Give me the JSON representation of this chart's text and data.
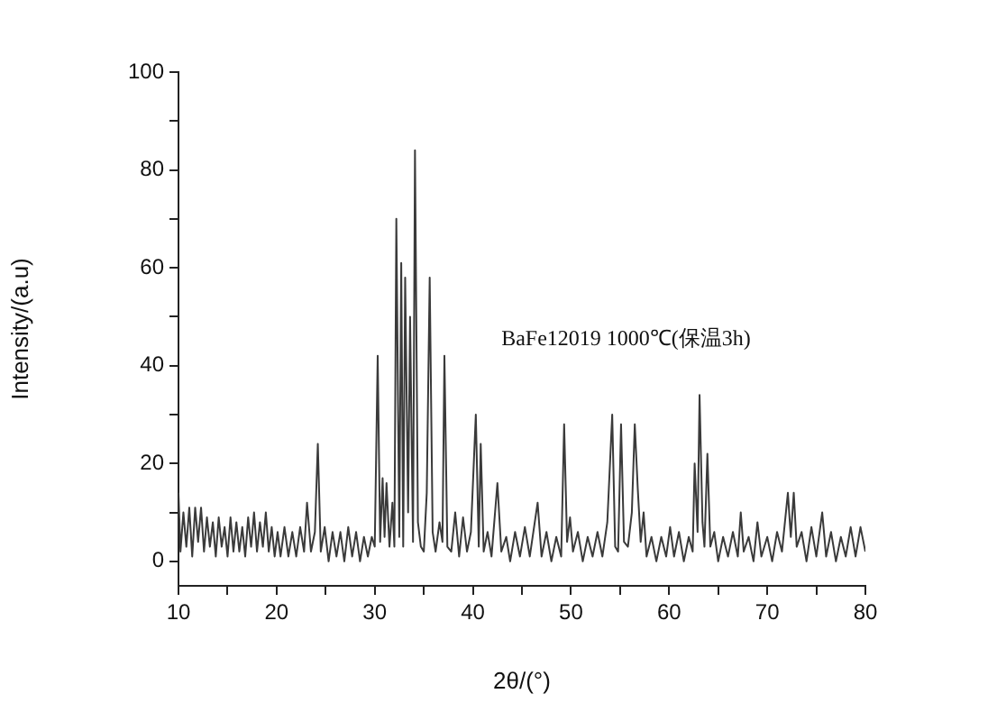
{
  "chart_data": {
    "type": "line",
    "xlabel": "2θ/(°)",
    "ylabel": "Intensity/(a.u)",
    "annotations": [
      "BaFe12019 1000℃(保温3h)"
    ],
    "xlim": [
      10,
      80
    ],
    "ylim": [
      -5,
      100
    ],
    "xticks": [
      10,
      {
        "value": 15,
        "label": null
      },
      20,
      {
        "value": 25,
        "label": null
      },
      30,
      {
        "value": 35,
        "label": null
      },
      40,
      {
        "value": 45,
        "label": null
      },
      50,
      {
        "value": 55,
        "label": null
      },
      60,
      {
        "value": 65,
        "label": null
      },
      70,
      {
        "value": 75,
        "label": null
      },
      80
    ],
    "yticks": [
      0,
      {
        "value": 10,
        "label": null
      },
      20,
      {
        "value": 30,
        "label": null
      },
      40,
      {
        "value": 50,
        "label": null
      },
      60,
      {
        "value": 70,
        "label": null
      },
      80,
      {
        "value": 90,
        "label": null
      },
      100
    ],
    "grid": false,
    "legend": false,
    "marker": "none",
    "line_style": "solid",
    "x": [
      10,
      10.2,
      10.5,
      10.8,
      11.1,
      11.4,
      11.7,
      12,
      12.3,
      12.6,
      12.9,
      13.2,
      13.5,
      13.8,
      14.1,
      14.4,
      14.7,
      15,
      15.3,
      15.6,
      15.9,
      16.2,
      16.5,
      16.8,
      17.1,
      17.4,
      17.7,
      18,
      18.3,
      18.6,
      18.9,
      19.2,
      19.5,
      19.8,
      20.1,
      20.4,
      20.8,
      21.2,
      21.6,
      22,
      22.4,
      22.8,
      23.1,
      23.5,
      23.9,
      24.2,
      24.5,
      24.9,
      25.3,
      25.7,
      26.1,
      26.5,
      26.9,
      27.3,
      27.7,
      28.1,
      28.5,
      28.9,
      29.3,
      29.7,
      30,
      30.3,
      30.55,
      30.8,
      31,
      31.2,
      31.5,
      31.8,
      32,
      32.2,
      32.5,
      32.7,
      32.9,
      33.1,
      33.4,
      33.6,
      33.9,
      34.1,
      34.4,
      34.7,
      35,
      35.3,
      35.6,
      35.9,
      36.2,
      36.6,
      36.9,
      37.1,
      37.4,
      37.8,
      38.2,
      38.6,
      39,
      39.4,
      39.8,
      40.3,
      40.6,
      40.8,
      41.1,
      41.5,
      41.9,
      42.5,
      42.9,
      43.4,
      43.8,
      44.3,
      44.8,
      45.3,
      45.8,
      46.6,
      47,
      47.5,
      48,
      48.5,
      49,
      49.3,
      49.6,
      49.9,
      50.2,
      50.7,
      51.2,
      51.7,
      52.2,
      52.7,
      53.2,
      53.7,
      54.2,
      54.5,
      54.8,
      55.1,
      55.4,
      55.8,
      56.2,
      56.5,
      56.8,
      57.1,
      57.4,
      57.7,
      58.2,
      58.7,
      59.2,
      59.7,
      60.1,
      60.5,
      61,
      61.5,
      62,
      62.4,
      62.6,
      62.9,
      63.1,
      63.4,
      63.6,
      63.9,
      64.2,
      64.6,
      65,
      65.5,
      66,
      66.5,
      67,
      67.3,
      67.6,
      68.1,
      68.6,
      69,
      69.4,
      70,
      70.5,
      71,
      71.5,
      72.1,
      72.4,
      72.7,
      73,
      73.5,
      74,
      74.5,
      75,
      75.6,
      76,
      76.5,
      77,
      77.5,
      78,
      78.5,
      79,
      79.5,
      80
    ],
    "series": [
      {
        "color": "#3a3a3a",
        "values": [
          14,
          2,
          10,
          3,
          11,
          1,
          11,
          4,
          11,
          2,
          9,
          3,
          8,
          1,
          9,
          3,
          7,
          1,
          9,
          2,
          8,
          2,
          7,
          1,
          9,
          3,
          10,
          2,
          8,
          3,
          10,
          2,
          7,
          1,
          6,
          1,
          7,
          1,
          6,
          1,
          7,
          2,
          12,
          2,
          6,
          24,
          2,
          7,
          0,
          6,
          1,
          6,
          0,
          7,
          1,
          6,
          0,
          5,
          1,
          5,
          3,
          42,
          4,
          17,
          5,
          16,
          3,
          12,
          3,
          70,
          5,
          61,
          3,
          58,
          10,
          50,
          4,
          84,
          8,
          3,
          2,
          14,
          58,
          6,
          2,
          8,
          4,
          42,
          3,
          2,
          10,
          1,
          9,
          2,
          6,
          30,
          3,
          24,
          2,
          6,
          1,
          16,
          2,
          5,
          0,
          6,
          1,
          7,
          1,
          12,
          1,
          6,
          0,
          5,
          1,
          28,
          4,
          9,
          2,
          6,
          0,
          5,
          1,
          6,
          1,
          8,
          30,
          3,
          2,
          28,
          4,
          3,
          10,
          28,
          15,
          4,
          10,
          1,
          5,
          0,
          5,
          1,
          7,
          1,
          6,
          0,
          5,
          2,
          20,
          6,
          34,
          8,
          3,
          22,
          3,
          6,
          0,
          5,
          1,
          6,
          1,
          10,
          2,
          5,
          0,
          8,
          1,
          5,
          0,
          6,
          2,
          14,
          5,
          14,
          3,
          6,
          0,
          7,
          1,
          10,
          1,
          6,
          0,
          5,
          1,
          7,
          1,
          7,
          2
        ]
      }
    ]
  }
}
